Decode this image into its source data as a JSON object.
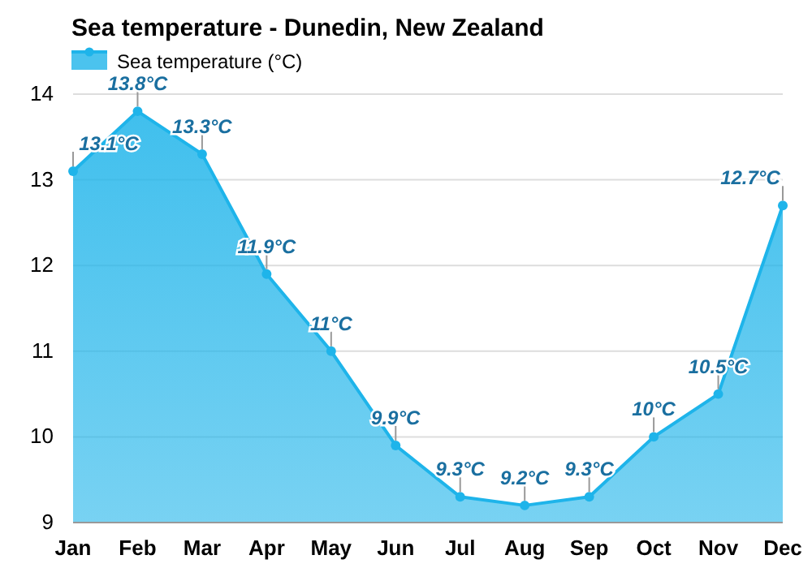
{
  "chart_data": {
    "type": "area",
    "title": "Sea temperature - Dunedin, New Zealand",
    "categories": [
      "Jan",
      "Feb",
      "Mar",
      "Apr",
      "May",
      "Jun",
      "Jul",
      "Aug",
      "Sep",
      "Oct",
      "Nov",
      "Dec"
    ],
    "series": [
      {
        "name": "Sea temperature (°C)",
        "color": "#1eb4ea",
        "values": [
          13.1,
          13.8,
          13.3,
          11.9,
          11,
          9.9,
          9.3,
          9.2,
          9.3,
          10,
          10.5,
          12.7
        ],
        "value_labels": [
          "13.1°C",
          "13.8°C",
          "13.3°C",
          "11.9°C",
          "11°C",
          "9.9°C",
          "9.3°C",
          "9.2°C",
          "9.3°C",
          "10°C",
          "10.5°C",
          "12.7°C"
        ]
      }
    ],
    "ylim": [
      9,
      14
    ],
    "yticks": [
      9,
      10,
      11,
      12,
      13,
      14
    ],
    "grid": "y",
    "legend": "top left",
    "marker": "circle"
  }
}
